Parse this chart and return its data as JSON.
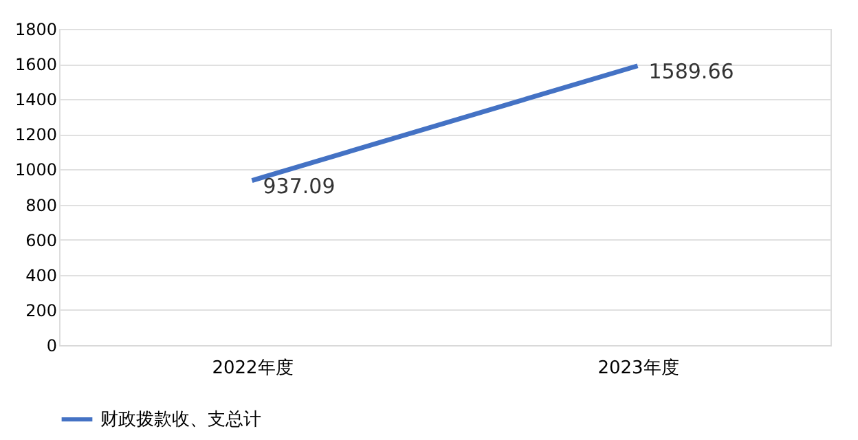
{
  "chart_data": {
    "type": "line",
    "categories": [
      "2022年度",
      "2023年度"
    ],
    "series": [
      {
        "name": "财政拨款收、支总计",
        "color": "#4472c4",
        "values": [
          937.09,
          1589.66
        ]
      }
    ],
    "ylim": [
      0,
      1800
    ],
    "yticks": [
      0,
      200,
      400,
      600,
      800,
      1000,
      1200,
      1400,
      1600,
      1800
    ],
    "grid": "y",
    "legend": "bottom",
    "data_labels": true,
    "marker": "none",
    "line_style": "solid"
  }
}
